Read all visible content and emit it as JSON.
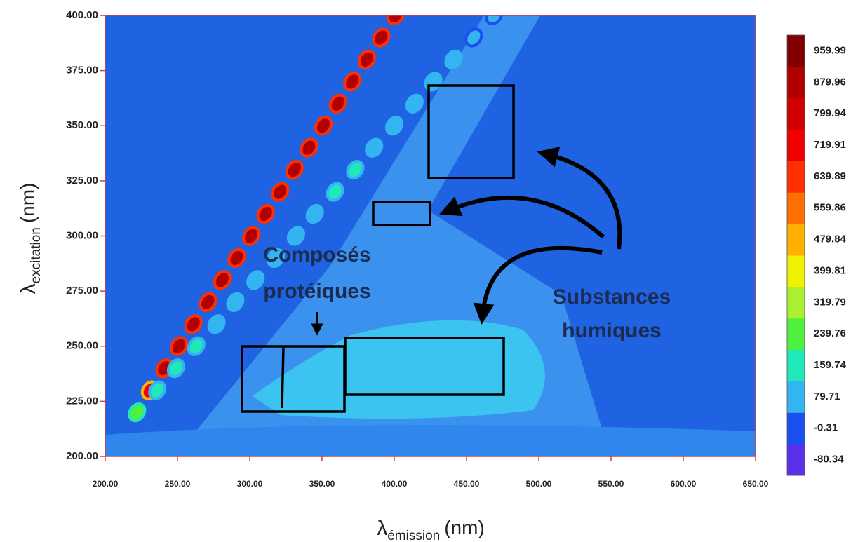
{
  "chart_data": {
    "type": "contour",
    "x_label": {
      "symbol": "λ",
      "subscript": "émission",
      "unit": "(nm)"
    },
    "y_label": {
      "symbol": "λ",
      "subscript": "excitation",
      "unit": "(nm)"
    },
    "xlim": [
      200,
      650
    ],
    "xticks": [
      {
        "value": 200,
        "label": "200.00"
      },
      {
        "value": 250,
        "label": "250.00"
      },
      {
        "value": 300,
        "label": "300.00"
      },
      {
        "value": 350,
        "label": "350.00"
      },
      {
        "value": 400,
        "label": "400.00"
      },
      {
        "value": 450,
        "label": "450.00"
      },
      {
        "value": 500,
        "label": "500.00"
      },
      {
        "value": 550,
        "label": "550.00"
      },
      {
        "value": 600,
        "label": "600.00"
      },
      {
        "value": 650,
        "label": "650.00"
      }
    ],
    "ylim": [
      200,
      400
    ],
    "yticks": [
      {
        "value": 200,
        "label": "200.00"
      },
      {
        "value": 225,
        "label": "225.00"
      },
      {
        "value": 250,
        "label": "250.00"
      },
      {
        "value": 275,
        "label": "275.00"
      },
      {
        "value": 300,
        "label": "300.00"
      },
      {
        "value": 325,
        "label": "325.00"
      },
      {
        "value": 350,
        "label": "350.00"
      },
      {
        "value": 375,
        "label": "375.00"
      },
      {
        "value": 400,
        "label": "400.00"
      }
    ],
    "colorbar": {
      "ticks": [
        -80.34,
        -0.31,
        79.71,
        159.74,
        239.76,
        319.79,
        399.81,
        479.84,
        559.86,
        639.89,
        719.91,
        799.94,
        879.96,
        959.99
      ],
      "colors": [
        "#5a30e8",
        "#1a50f0",
        "#34b4f0",
        "#20e8b8",
        "#50f040",
        "#a8f030",
        "#f0f000",
        "#ffb000",
        "#ff7000",
        "#ff3000",
        "#f00000",
        "#d00000",
        "#b00000",
        "#800000"
      ]
    },
    "peaks": [
      {
        "x": [
          231,
          241,
          251,
          261,
          271,
          281,
          291,
          301,
          311,
          321,
          331,
          341,
          351,
          361,
          371,
          381,
          391,
          401
        ],
        "y": [
          230,
          240,
          250,
          260,
          270,
          280,
          290,
          300,
          310,
          320,
          330,
          340,
          350,
          360,
          370,
          380,
          390,
          400
        ],
        "z": [
          720,
          900,
          900,
          890,
          900,
          880,
          900,
          890,
          880,
          900,
          900,
          890,
          900,
          910,
          900,
          890,
          900,
          880
        ]
      },
      {
        "x": [
          222,
          236,
          249,
          263,
          277,
          290,
          304,
          318,
          332,
          345,
          359,
          373,
          386,
          400,
          414,
          427,
          441,
          455,
          469
        ],
        "y": [
          220,
          230,
          240,
          250,
          260,
          270,
          280,
          290,
          300,
          310,
          320,
          330,
          340,
          350,
          360,
          370,
          380,
          390,
          400
        ],
        "z": [
          260,
          180,
          160,
          170,
          150,
          140,
          130,
          130,
          150,
          140,
          160,
          170,
          150,
          150,
          140,
          120,
          110,
          100,
          90
        ]
      }
    ],
    "annotations": {
      "proteic": [
        "Composés",
        "protéiques"
      ],
      "humic": [
        "Substances",
        "humiques"
      ]
    }
  }
}
